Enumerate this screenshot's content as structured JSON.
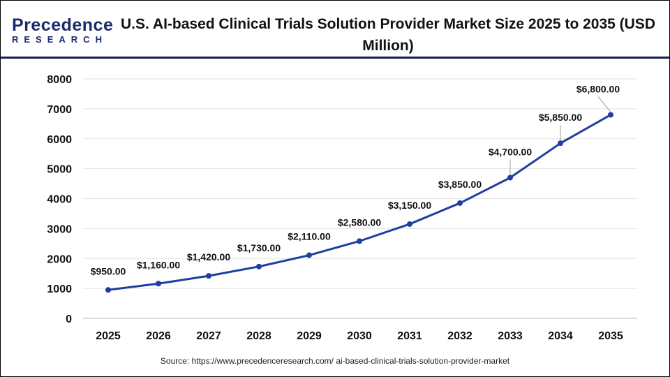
{
  "logo": {
    "line1": "Precedence",
    "line2": "RESEARCH"
  },
  "title": "U.S. AI-based Clinical Trials Solution Provider Market Size 2025 to 2035 (USD Million)",
  "source": "Source: https://www.precedenceresearch.com/ ai-based-clinical-trials-solution-provider-market",
  "chart_data": {
    "type": "line",
    "title": "U.S. AI-based Clinical Trials Solution Provider Market Size 2025 to 2035 (USD Million)",
    "categories": [
      "2025",
      "2026",
      "2027",
      "2028",
      "2029",
      "2030",
      "2031",
      "2032",
      "2033",
      "2034",
      "2035"
    ],
    "values": [
      950,
      1160,
      1420,
      1730,
      2110,
      2580,
      3150,
      3850,
      4700,
      5850,
      6800
    ],
    "labels": [
      "$950.00",
      "$1,160.00",
      "$1,420.00",
      "$1,730.00",
      "$2,110.00",
      "$2,580.00",
      "$3,150.00",
      "$3,850.00",
      "$4,700.00",
      "$5,850.00",
      "$6,800.00"
    ],
    "yticks": [
      "0",
      "1000",
      "2000",
      "3000",
      "4000",
      "5000",
      "6000",
      "7000",
      "8000"
    ],
    "ylim": [
      0,
      8000
    ],
    "grid": true,
    "line_color": "#1f3f9f"
  }
}
